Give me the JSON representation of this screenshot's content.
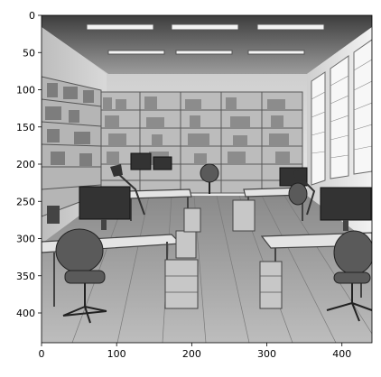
{
  "image": {
    "description_scene": "grayscale office interior",
    "palette": {
      "light": "#e6e6e6",
      "mid": "#9a9a9a",
      "dark": "#2b2b2b",
      "frame": "#000000"
    }
  },
  "axes": {
    "x_ticks": [
      0,
      100,
      200,
      300,
      400
    ],
    "y_ticks": [
      0,
      50,
      100,
      150,
      200,
      250,
      300,
      350,
      400
    ],
    "x_range": [
      0,
      440
    ],
    "y_range": [
      0,
      440
    ]
  }
}
